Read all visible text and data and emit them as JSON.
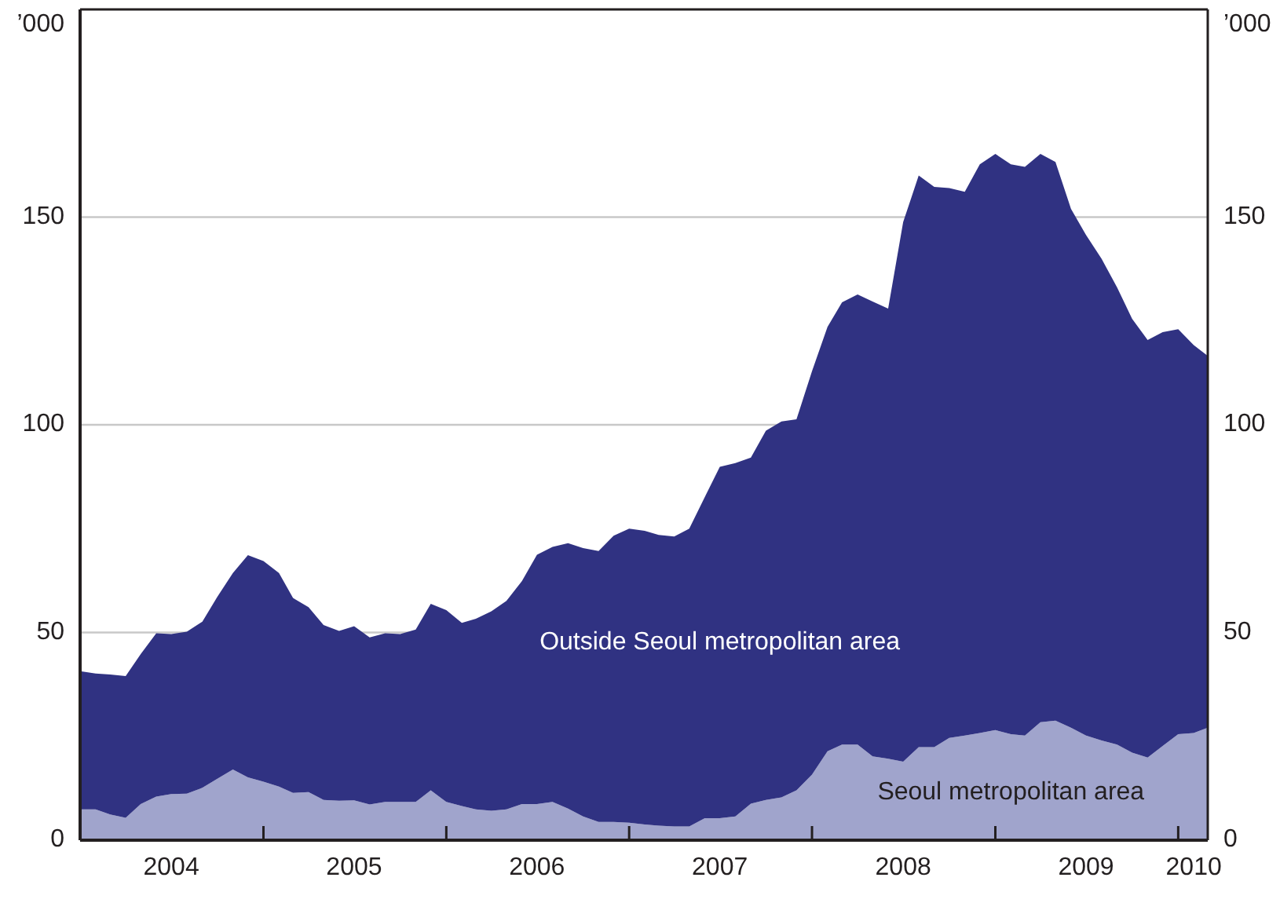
{
  "chart_data": {
    "type": "area",
    "stacked": true,
    "ylabel": "’000",
    "y2label": "’000",
    "x": [
      "2004-01",
      "2004-02",
      "2004-03",
      "2004-04",
      "2004-05",
      "2004-06",
      "2004-07",
      "2004-08",
      "2004-09",
      "2004-10",
      "2004-11",
      "2004-12",
      "2005-01",
      "2005-02",
      "2005-03",
      "2005-04",
      "2005-05",
      "2005-06",
      "2005-07",
      "2005-08",
      "2005-09",
      "2005-10",
      "2005-11",
      "2005-12",
      "2006-01",
      "2006-02",
      "2006-03",
      "2006-04",
      "2006-05",
      "2006-06",
      "2006-07",
      "2006-08",
      "2006-09",
      "2006-10",
      "2006-11",
      "2006-12",
      "2007-01",
      "2007-02",
      "2007-03",
      "2007-04",
      "2007-05",
      "2007-06",
      "2007-07",
      "2007-08",
      "2007-09",
      "2007-10",
      "2007-11",
      "2007-12",
      "2008-01",
      "2008-02",
      "2008-03",
      "2008-04",
      "2008-05",
      "2008-06",
      "2008-07",
      "2008-08",
      "2008-09",
      "2008-10",
      "2008-11",
      "2008-12",
      "2009-01",
      "2009-02",
      "2009-03",
      "2009-04",
      "2009-05",
      "2009-06",
      "2009-07",
      "2009-08",
      "2009-09",
      "2009-10",
      "2009-11",
      "2009-12",
      "2010-01",
      "2010-02",
      "2010-03"
    ],
    "series": [
      {
        "name": "Seoul metropolitan area",
        "color": "#a0a4cc",
        "values": [
          7.4,
          7.4,
          6.2,
          5.4,
          8.7,
          10.5,
          11.1,
          11.2,
          12.6,
          14.8,
          17.0,
          15.1,
          14.1,
          12.9,
          11.4,
          11.6,
          9.7,
          9.5,
          9.6,
          8.6,
          9.2,
          9.2,
          9.2,
          12.0,
          9.2,
          8.2,
          7.4,
          7.1,
          7.4,
          8.7,
          8.7,
          9.2,
          7.6,
          5.7,
          4.4,
          4.4,
          4.2,
          3.8,
          3.5,
          3.3,
          3.3,
          5.3,
          5.3,
          5.7,
          8.8,
          9.7,
          10.3,
          12.0,
          15.8,
          21.4,
          23.0,
          23.0,
          20.2,
          19.6,
          18.9,
          22.4,
          22.4,
          24.6,
          25.2,
          25.8,
          26.5,
          25.5,
          25.2,
          28.4,
          28.8,
          27.1,
          25.2,
          24.0,
          23.0,
          21.1,
          19.9,
          22.7,
          25.5,
          25.8,
          27.1
        ]
      },
      {
        "name": "Outside Seoul metropolitan area",
        "color": "#303282",
        "values": [
          33.3,
          32.7,
          33.7,
          34.1,
          36.1,
          39.3,
          38.5,
          39.0,
          40.0,
          43.8,
          47.3,
          53.5,
          53.1,
          51.4,
          46.9,
          44.5,
          42.1,
          40.9,
          41.9,
          40.2,
          40.6,
          40.4,
          41.5,
          44.9,
          46.2,
          44.1,
          45.9,
          48.0,
          50.2,
          53.7,
          60.0,
          61.4,
          63.9,
          64.6,
          65.2,
          68.9,
          70.8,
          70.7,
          70.0,
          69.8,
          71.7,
          77.3,
          84.6,
          85.1,
          83.3,
          88.9,
          90.5,
          89.3,
          97.1,
          102.2,
          106.5,
          108.4,
          109.5,
          108.4,
          129.9,
          137.6,
          134.9,
          132.4,
          130.9,
          136.9,
          138.7,
          137.2,
          136.9,
          136.8,
          134.5,
          124.9,
          120.5,
          116.0,
          110.1,
          104.4,
          100.5,
          99.6,
          97.5,
          93.4,
          89.5
        ]
      }
    ],
    "xlim": [
      "2004-01",
      "2010-03"
    ],
    "xticks": [
      {
        "value": "2004-07",
        "label": "2004"
      },
      {
        "value": "2005-01",
        "label": null
      },
      {
        "value": "2005-07",
        "label": "2005"
      },
      {
        "value": "2006-01",
        "label": null
      },
      {
        "value": "2006-07",
        "label": "2006"
      },
      {
        "value": "2007-01",
        "label": null
      },
      {
        "value": "2007-07",
        "label": "2007"
      },
      {
        "value": "2008-01",
        "label": null
      },
      {
        "value": "2008-07",
        "label": "2008"
      },
      {
        "value": "2009-01",
        "label": null
      },
      {
        "value": "2009-07",
        "label": "2009"
      },
      {
        "value": "2010-01",
        "label": null
      },
      {
        "value": "2010-02",
        "label": "2010"
      }
    ],
    "ylim": [
      0,
      200
    ],
    "yticks": [
      0,
      50,
      100,
      150
    ],
    "y2lim": [
      0,
      200
    ],
    "y2ticks": [
      0,
      50,
      100,
      150
    ],
    "grid": "y"
  }
}
